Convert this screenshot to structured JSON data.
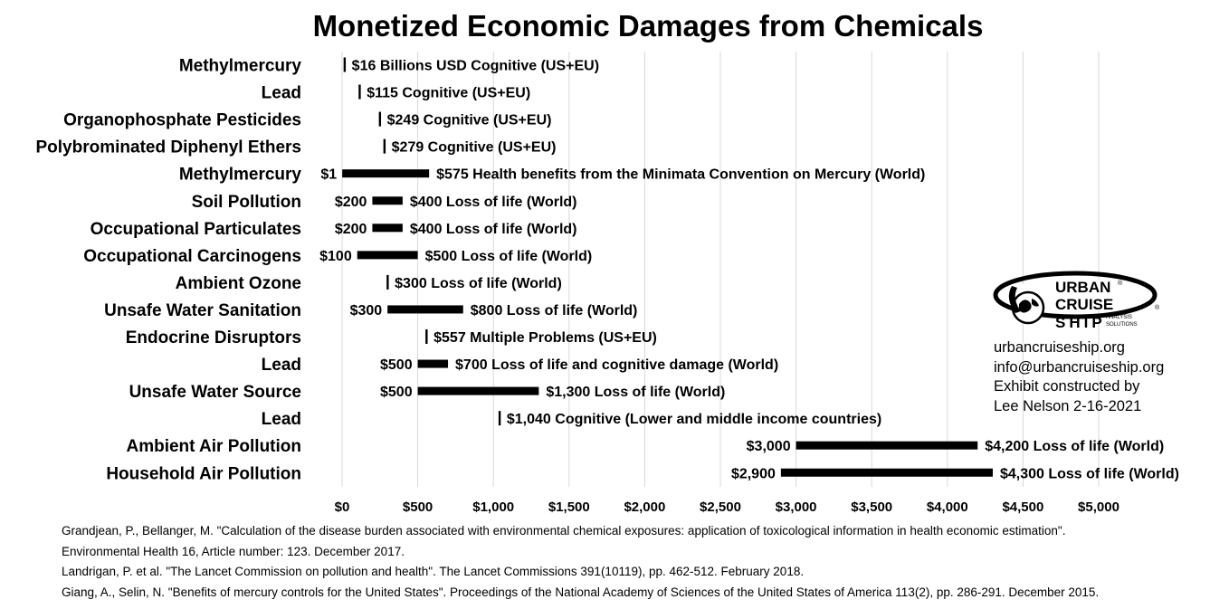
{
  "chart_data": {
    "type": "bar",
    "orientation": "horizontal-range",
    "title": "Monetized Economic Damages from Chemicals",
    "xlim": [
      0,
      5000
    ],
    "x_ticks": [
      "$0",
      "$500",
      "$1,000",
      "$1,500",
      "$2,000",
      "$2,500",
      "$3,000",
      "$3,500",
      "$4,000",
      "$4,500",
      "$5,000"
    ],
    "x_tick_values": [
      0,
      500,
      1000,
      1500,
      2000,
      2500,
      3000,
      3500,
      4000,
      4500,
      5000
    ],
    "grid": true,
    "bars": [
      {
        "category": "Methylmercury",
        "low": 16,
        "high": 16,
        "low_label": "",
        "high_label": "$16 Billions USD Cognitive (US+EU)"
      },
      {
        "category": "Lead",
        "low": 115,
        "high": 115,
        "low_label": "",
        "high_label": "$115 Cognitive (US+EU)"
      },
      {
        "category": "Organophosphate Pesticides",
        "low": 249,
        "high": 249,
        "low_label": "",
        "high_label": "$249 Cognitive (US+EU)"
      },
      {
        "category": "Polybrominated Diphenyl Ethers",
        "low": 279,
        "high": 279,
        "low_label": "",
        "high_label": "$279 Cognitive (US+EU)"
      },
      {
        "category": "Methylmercury",
        "low": 1,
        "high": 575,
        "low_label": "$1",
        "high_label": "$575 Health benefits from the Minimata Convention on Mercury (World)"
      },
      {
        "category": "Soil Pollution",
        "low": 200,
        "high": 400,
        "low_label": "$200",
        "high_label": "$400 Loss of life (World)"
      },
      {
        "category": "Occupational Particulates",
        "low": 200,
        "high": 400,
        "low_label": "$200",
        "high_label": "$400 Loss of life (World)"
      },
      {
        "category": "Occupational Carcinogens",
        "low": 100,
        "high": 500,
        "low_label": "$100",
        "high_label": "$500 Loss of life (World)"
      },
      {
        "category": "Ambient Ozone",
        "low": 300,
        "high": 300,
        "low_label": "",
        "high_label": "$300 Loss of life (World)"
      },
      {
        "category": "Unsafe Water Sanitation",
        "low": 300,
        "high": 800,
        "low_label": "$300",
        "high_label": "$800 Loss of life (World)"
      },
      {
        "category": "Endocrine Disruptors",
        "low": 557,
        "high": 557,
        "low_label": "",
        "high_label": "$557 Multiple Problems (US+EU)"
      },
      {
        "category": "Lead",
        "low": 500,
        "high": 700,
        "low_label": "$500",
        "high_label": "$700 Loss of life and cognitive damage (World)"
      },
      {
        "category": "Unsafe Water Source",
        "low": 500,
        "high": 1300,
        "low_label": "$500",
        "high_label": "$1,300 Loss of life (World)"
      },
      {
        "category": "Lead",
        "low": 1040,
        "high": 1040,
        "low_label": "",
        "high_label": "$1,040 Cognitive (Lower and middle income countries)"
      },
      {
        "category": "Ambient Air Pollution",
        "low": 3000,
        "high": 4200,
        "low_label": "$3,000",
        "high_label": "$4,200 Loss of life (World)"
      },
      {
        "category": "Household Air Pollution",
        "low": 2900,
        "high": 4300,
        "low_label": "$2,900",
        "high_label": "$4,300 Loss of life (World)"
      }
    ]
  },
  "logo": {
    "line1": "URBAN",
    "line2": "CRUISE",
    "line3": "SHIP",
    "sub1": "ANALYSIS",
    "sub2": "SOLUTIONS",
    "mark": "®"
  },
  "contact": {
    "website": "urbancruiseship.org",
    "email": "info@urbancruiseship.org",
    "credit1": "Exhibit constructed by",
    "credit2": "Lee Nelson 2-16-2021"
  },
  "references": [
    "Grandjean, P., Bellanger, M. \"Calculation of the disease burden associated with environmental chemical exposures: application of toxicological information in health economic estimation\".",
    "Environmental Health 16, Article number: 123. December 2017.",
    "Landrigan, P. et al. \"The Lancet Commission on pollution and health\". The Lancet Commissions 391(10119), pp. 462-512. February 2018.",
    "Giang, A., Selin, N. \"Benefits of mercury controls for the United States\". Proceedings of the National Academy of Sciences of the United States of America 113(2), pp. 286-291. December 2015."
  ],
  "colors": {
    "bar": "#000000",
    "grid": "#d9d9d9",
    "text": "#000000",
    "background": "#ffffff"
  }
}
